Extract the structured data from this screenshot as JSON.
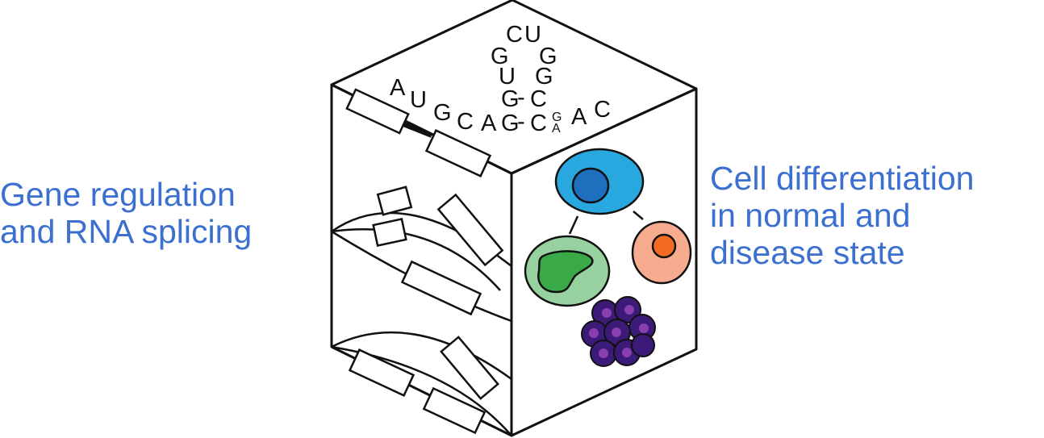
{
  "labels": {
    "left": [
      "Gene regulation",
      "and RNA splicing"
    ],
    "right": [
      "Cell differentiation",
      "in normal and",
      "disease state"
    ]
  },
  "rna_hairpin": {
    "loop_top": [
      "C",
      "U"
    ],
    "stem_left": [
      "G",
      "U",
      "G",
      "G"
    ],
    "stem_right": [
      "G",
      "G",
      "C",
      "C"
    ],
    "pair_dash": "-",
    "five_prime_tail": [
      "A",
      "U",
      "G",
      "C",
      "A"
    ],
    "three_prime_tail": [
      "A",
      "C"
    ],
    "bulge": [
      "G",
      "A"
    ]
  },
  "colors": {
    "text": "#3b6fd0",
    "outline": "#111111",
    "stem_cell": "#29a8e0",
    "stem_nucleus": "#1f6fbf",
    "myeloid_cell": "#f7ac8f",
    "myeloid_nucleus": "#f26b21",
    "granulocyte_cell": "#98d1a0",
    "granulocyte_nucleus": "#3aaa48",
    "megakaryocyte": "#3b1a78",
    "megakaryocyte_nucleus": "#8a3fb0"
  }
}
